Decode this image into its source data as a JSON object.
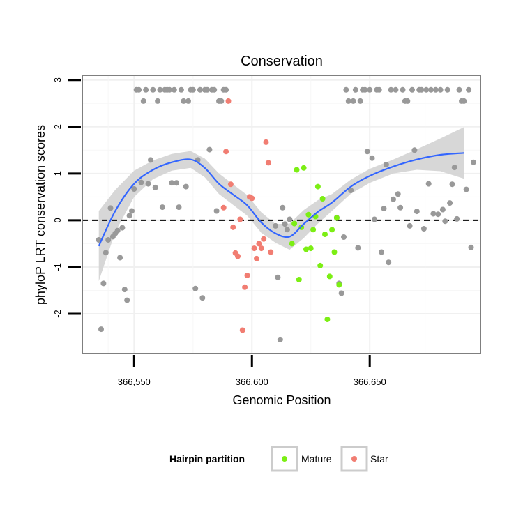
{
  "chart_data": {
    "type": "scatter",
    "title": "Conservation",
    "xlabel": "Genomic Position",
    "ylabel": "phyloP LRT conservation scores",
    "xlim": [
      366528,
      366697
    ],
    "ylim": [
      -2.85,
      3.1
    ],
    "x_ticks": [
      366550,
      366600,
      366650
    ],
    "x_tick_labels": [
      "366,550",
      "366,600",
      "366,650"
    ],
    "y_ticks": [
      -2,
      -1,
      0,
      1,
      2,
      3
    ],
    "y_tick_labels": [
      "-2",
      "-1",
      "0",
      "1",
      "2",
      "3"
    ],
    "reference_line": {
      "y": 0,
      "style": "dashed"
    },
    "grid": true,
    "legend": {
      "title": "Hairpin partition",
      "position": "bottom",
      "entries": [
        {
          "label": "Mature",
          "color": "#7cee14"
        },
        {
          "label": "Star",
          "color": "#f17d72"
        }
      ]
    },
    "colors": {
      "other": "#999999",
      "Mature": "#7cee14",
      "Star": "#f17d72",
      "smooth": "#3366ff",
      "ribbon": "#d3d3d3"
    },
    "series": [
      {
        "group": "other",
        "points": [
          [
            366535,
            -0.42
          ],
          [
            366536,
            -2.33
          ],
          [
            366537,
            -1.35
          ],
          [
            366538,
            -0.69
          ],
          [
            366539,
            -0.42
          ],
          [
            366540,
            0.26
          ],
          [
            366541,
            -0.35
          ],
          [
            366542,
            -0.28
          ],
          [
            366543,
            -0.22
          ],
          [
            366544,
            -0.8
          ],
          [
            366545,
            -0.16
          ],
          [
            366546,
            -1.48
          ],
          [
            366547,
            -1.71
          ],
          [
            366548,
            0.1
          ],
          [
            366549,
            0.2
          ],
          [
            366550,
            0.67
          ],
          [
            366551,
            2.79
          ],
          [
            366552,
            2.79
          ],
          [
            366553,
            0.81
          ],
          [
            366554,
            2.55
          ],
          [
            366555,
            2.79
          ],
          [
            366556,
            0.78
          ],
          [
            366557,
            1.29
          ],
          [
            366558,
            2.79
          ],
          [
            366559,
            0.7
          ],
          [
            366560,
            2.55
          ],
          [
            366561,
            2.79
          ],
          [
            366562,
            0.28
          ],
          [
            366563,
            2.79
          ],
          [
            366564,
            2.79
          ],
          [
            366565,
            2.79
          ],
          [
            366566,
            0.8
          ],
          [
            366567,
            2.79
          ],
          [
            366568,
            0.8
          ],
          [
            366569,
            0.28
          ],
          [
            366570,
            2.79
          ],
          [
            366571,
            2.55
          ],
          [
            366572,
            0.72
          ],
          [
            366573,
            2.55
          ],
          [
            366574,
            2.79
          ],
          [
            366575,
            2.79
          ],
          [
            366576,
            -1.46
          ],
          [
            366577,
            1.29
          ],
          [
            366578,
            2.79
          ],
          [
            366579,
            -1.66
          ],
          [
            366580,
            2.79
          ],
          [
            366581,
            2.79
          ],
          [
            366582,
            1.51
          ],
          [
            366583,
            2.79
          ],
          [
            366584,
            2.79
          ],
          [
            366585,
            0.2
          ],
          [
            366586,
            2.55
          ],
          [
            366587,
            2.55
          ],
          [
            366588,
            2.79
          ],
          [
            366589,
            2.79
          ],
          [
            366610,
            -0.12
          ],
          [
            366611,
            -1.22
          ],
          [
            366612,
            -2.55
          ],
          [
            366613,
            0.27
          ],
          [
            366614,
            -0.08
          ],
          [
            366615,
            -0.2
          ],
          [
            366616,
            0.02
          ],
          [
            366636,
            0.06
          ],
          [
            366637,
            -1.35
          ],
          [
            366638,
            -1.56
          ],
          [
            366639,
            -0.36
          ],
          [
            366640,
            2.79
          ],
          [
            366641,
            2.55
          ],
          [
            366642,
            0.64
          ],
          [
            366643,
            2.55
          ],
          [
            366644,
            2.79
          ],
          [
            366645,
            -0.59
          ],
          [
            366646,
            2.55
          ],
          [
            366647,
            2.79
          ],
          [
            366648,
            2.79
          ],
          [
            366649,
            1.47
          ],
          [
            366650,
            2.79
          ],
          [
            366651,
            1.33
          ],
          [
            366652,
            0.02
          ],
          [
            366653,
            2.79
          ],
          [
            366654,
            2.79
          ],
          [
            366655,
            -0.68
          ],
          [
            366656,
            0.25
          ],
          [
            366657,
            1.19
          ],
          [
            366658,
            -0.9
          ],
          [
            366659,
            2.79
          ],
          [
            366660,
            0.45
          ],
          [
            366661,
            2.79
          ],
          [
            366662,
            0.56
          ],
          [
            366663,
            0.27
          ],
          [
            366664,
            2.79
          ],
          [
            366665,
            2.55
          ],
          [
            366666,
            2.55
          ],
          [
            366667,
            -0.12
          ],
          [
            366668,
            2.79
          ],
          [
            366669,
            1.5
          ],
          [
            366670,
            0.19
          ],
          [
            366671,
            2.79
          ],
          [
            366672,
            2.79
          ],
          [
            366673,
            -0.18
          ],
          [
            366674,
            2.79
          ],
          [
            366675,
            0.78
          ],
          [
            366676,
            2.79
          ],
          [
            366677,
            0.14
          ],
          [
            366678,
            2.79
          ],
          [
            366679,
            0.13
          ],
          [
            366680,
            2.79
          ],
          [
            366681,
            0.23
          ],
          [
            366682,
            -0.02
          ],
          [
            366683,
            2.79
          ],
          [
            366684,
            0.37
          ],
          [
            366685,
            0.77
          ],
          [
            366686,
            1.13
          ],
          [
            366687,
            0.03
          ],
          [
            366688,
            2.79
          ],
          [
            366689,
            2.55
          ],
          [
            366690,
            2.55
          ],
          [
            366691,
            0.66
          ],
          [
            366692,
            2.79
          ],
          [
            366693,
            -0.58
          ],
          [
            366694,
            1.24
          ]
        ]
      },
      {
        "group": "Star",
        "points": [
          [
            366588,
            0.27
          ],
          [
            366589,
            1.47
          ],
          [
            366590,
            2.55
          ],
          [
            366591,
            0.77
          ],
          [
            366592,
            -0.15
          ],
          [
            366593,
            -0.7
          ],
          [
            366594,
            -0.77
          ],
          [
            366595,
            0.02
          ],
          [
            366596,
            -2.35
          ],
          [
            366597,
            -1.43
          ],
          [
            366598,
            -1.18
          ],
          [
            366599,
            0.5
          ],
          [
            366600,
            0.47
          ],
          [
            366601,
            -0.6
          ],
          [
            366602,
            -0.82
          ],
          [
            366603,
            -0.5
          ],
          [
            366604,
            -0.6
          ],
          [
            366605,
            -0.4
          ],
          [
            366606,
            1.67
          ],
          [
            366607,
            1.23
          ],
          [
            366608,
            -0.68
          ]
        ]
      },
      {
        "group": "Mature",
        "points": [
          [
            366617,
            -0.5
          ],
          [
            366618,
            -0.07
          ],
          [
            366619,
            1.08
          ],
          [
            366620,
            -1.27
          ],
          [
            366621,
            -0.15
          ],
          [
            366622,
            1.12
          ],
          [
            366623,
            -0.62
          ],
          [
            366624,
            0.12
          ],
          [
            366625,
            -0.6
          ],
          [
            366626,
            -0.2
          ],
          [
            366627,
            0.08
          ],
          [
            366628,
            0.72
          ],
          [
            366629,
            -0.97
          ],
          [
            366630,
            0.46
          ],
          [
            366631,
            -0.3
          ],
          [
            366632,
            -2.12
          ],
          [
            366633,
            -1.2
          ],
          [
            366634,
            -0.2
          ],
          [
            366635,
            -0.68
          ],
          [
            366636,
            0.05
          ],
          [
            366637,
            -1.38
          ]
        ]
      }
    ],
    "smooth": {
      "x": [
        366535,
        366542,
        366550,
        366558,
        366566,
        366574,
        366580,
        366586,
        366592,
        366598,
        366604,
        366610,
        366616,
        366622,
        366628,
        366634,
        366642,
        366650,
        366660,
        366670,
        366680,
        366690
      ],
      "y": [
        -0.55,
        0.2,
        0.78,
        1.08,
        1.24,
        1.3,
        1.12,
        0.78,
        0.55,
        0.32,
        -0.05,
        -0.28,
        -0.35,
        -0.08,
        0.18,
        0.38,
        0.72,
        0.95,
        1.15,
        1.3,
        1.4,
        1.44
      ],
      "ci_half_width": [
        0.75,
        0.45,
        0.28,
        0.2,
        0.18,
        0.18,
        0.2,
        0.22,
        0.22,
        0.22,
        0.22,
        0.2,
        0.28,
        0.3,
        0.25,
        0.18,
        0.15,
        0.15,
        0.15,
        0.22,
        0.35,
        0.55
      ]
    }
  }
}
